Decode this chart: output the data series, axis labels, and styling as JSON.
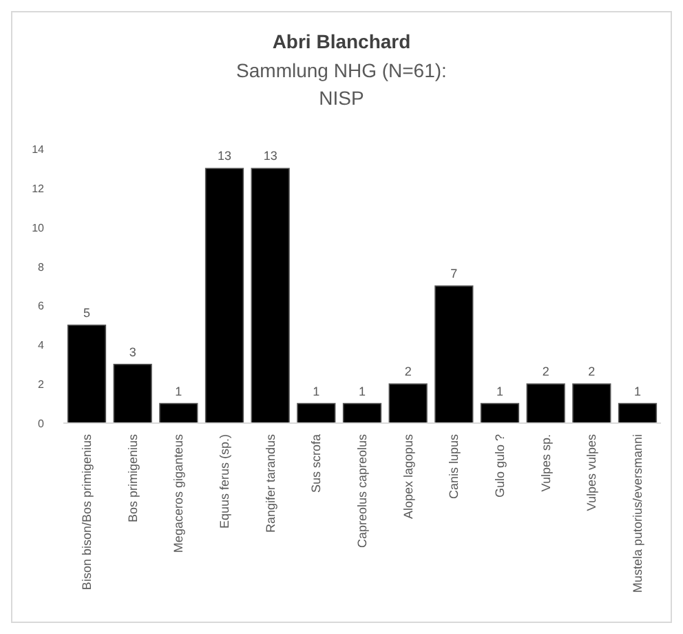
{
  "chart_data": {
    "type": "bar",
    "title": "Abri Blanchard",
    "subtitle": "Sammlung NHG (N=61): NISP",
    "categories": [
      "Bison bison/Bos primigenius",
      "Bos primigenius",
      "Megaceros giganteus",
      "Equus ferus (sp.)",
      "Rangifer tarandus",
      "Sus scrofa",
      "Capreolus capreolus",
      "Alopex lagopus",
      "Canis lupus",
      "Gulo gulo ?",
      "Vulpes sp.",
      "Vulpes vulpes",
      "Mustela putorius/eversmanni"
    ],
    "values": [
      5,
      3,
      1,
      13,
      13,
      1,
      1,
      2,
      7,
      1,
      2,
      2,
      1
    ],
    "color": "#000000",
    "ylim": [
      0,
      14
    ],
    "yticks": [
      0,
      2,
      4,
      6,
      8,
      10,
      12,
      14
    ],
    "grid": false,
    "data_labels": true
  }
}
